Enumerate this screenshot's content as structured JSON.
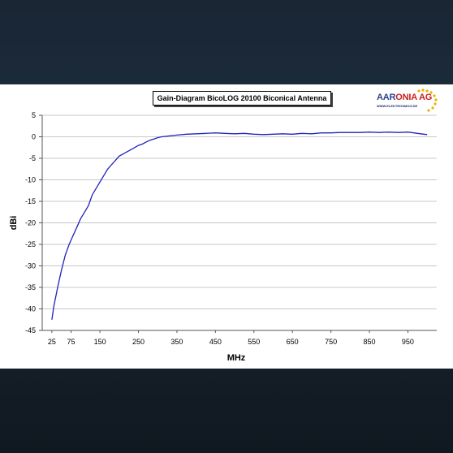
{
  "logo": {
    "part1": "AAR",
    "part2": "ONIA AG",
    "sub": "WWW.ELEKTROSMOG.DE"
  },
  "chart_data": {
    "type": "line",
    "title": "Gain-Diagram BicoLOG 20100 Biconical Antenna",
    "xlabel": "MHz",
    "ylabel": "dBi",
    "xlim": [
      0,
      1025
    ],
    "ylim": [
      -45,
      5
    ],
    "x_ticks": [
      25,
      75,
      150,
      250,
      350,
      450,
      550,
      650,
      750,
      850,
      950
    ],
    "y_ticks": [
      5,
      0,
      -5,
      -10,
      -15,
      -20,
      -25,
      -30,
      -35,
      -40,
      -45
    ],
    "grid": true,
    "line_color": "#2222bb",
    "series": [
      {
        "x": [
          25,
          30,
          40,
          50,
          60,
          70,
          80,
          90,
          100,
          110,
          120,
          130,
          140,
          150,
          160,
          170,
          180,
          190,
          200,
          210,
          220,
          230,
          240,
          250,
          260,
          270,
          280,
          290,
          300,
          310,
          320,
          330,
          340,
          350,
          375,
          400,
          425,
          450,
          475,
          500,
          525,
          550,
          575,
          600,
          625,
          650,
          675,
          700,
          725,
          750,
          775,
          800,
          825,
          850,
          875,
          900,
          925,
          950,
          975,
          1000
        ],
        "values": [
          -42.5,
          -39.5,
          -35,
          -31,
          -27.5,
          -25,
          -23,
          -21,
          -19,
          -17.5,
          -16,
          -13.5,
          -12,
          -10.5,
          -9,
          -7.5,
          -6.5,
          -5.5,
          -4.5,
          -4,
          -3.5,
          -3,
          -2.5,
          -2,
          -1.7,
          -1.2,
          -0.8,
          -0.5,
          -0.2,
          0,
          0.1,
          0.2,
          0.3,
          0.4,
          0.6,
          0.7,
          0.8,
          0.9,
          0.8,
          0.7,
          0.8,
          0.6,
          0.5,
          0.6,
          0.7,
          0.6,
          0.8,
          0.7,
          0.9,
          0.9,
          1.0,
          1.0,
          1.0,
          1.1,
          1.0,
          1.1,
          1.0,
          1.1,
          0.8,
          0.5
        ]
      }
    ]
  }
}
